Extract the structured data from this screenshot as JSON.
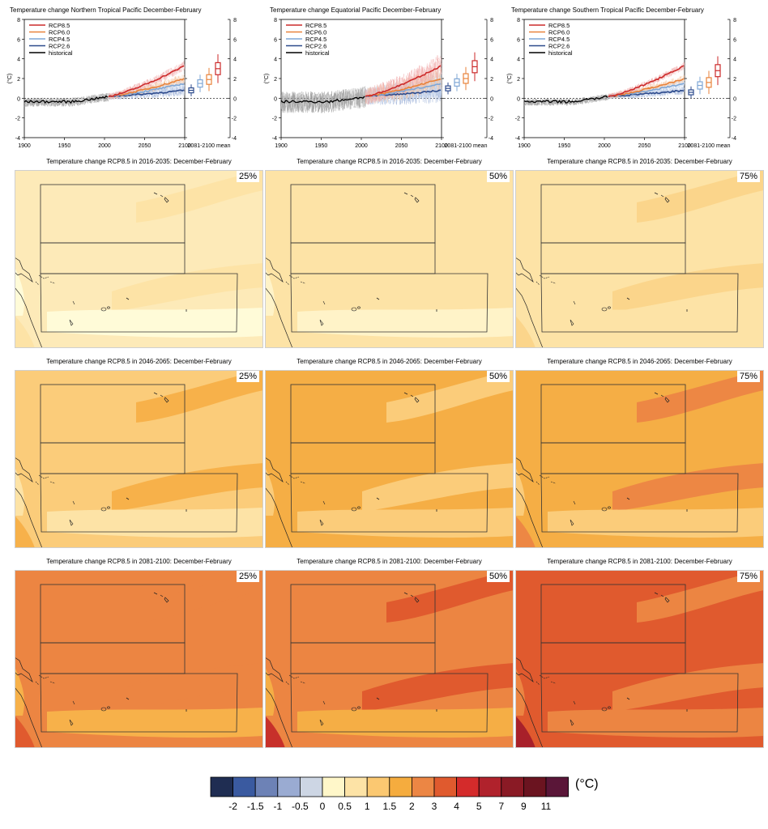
{
  "timeseries": [
    {
      "title": "Temperature change Northern Tropical Pacific December-February",
      "left": 8,
      "box": {
        "RCP2.6": 0.8,
        "RCP4.5": 1.5,
        "RCP6.0": 1.9,
        "RCP8.5": 3.0
      },
      "noise": 0.45
    },
    {
      "title": "Temperature change Equatorial Pacific December-February",
      "left": 325,
      "box": {
        "RCP2.6": 1.0,
        "RCP4.5": 1.6,
        "RCP6.0": 2.0,
        "RCP8.5": 3.2
      },
      "noise": 1.1
    },
    {
      "title": "Temperature change Southern Tropical Pacific December-February",
      "left": 636,
      "box": {
        "RCP2.6": 0.6,
        "RCP4.5": 1.3,
        "RCP6.0": 1.6,
        "RCP8.5": 2.8
      },
      "noise": 0.35
    }
  ],
  "legend": [
    "RCP8.5",
    "RCP6.0",
    "RCP4.5",
    "RCP2.6",
    "historical"
  ],
  "unit_axis": "(°C)",
  "box_label": "2081-2100 mean",
  "colors": {
    "rcp85": "#cc2a2a",
    "rcp60": "#e8823a",
    "rcp45": "#7fa7d6",
    "rcp26": "#2c4a8c",
    "historical": "#000000",
    "rcp85_light": "#f0a7a7",
    "rcp60_light": "#f5c4a0",
    "rcp45_light": "#c5d6ee",
    "rcp26_light": "#9fb2d8",
    "hist_light": "#9a9a9a"
  },
  "chart_data": {
    "type": "line",
    "x_range": [
      1900,
      2100
    ],
    "ylim": [
      -4,
      8
    ],
    "x_ticks": [
      1900,
      1950,
      2000,
      2050,
      2100
    ],
    "y_ticks": [
      -4,
      -2,
      0,
      2,
      4,
      6,
      8
    ]
  },
  "maps": [
    {
      "title": "Temperature change RCP8.5 in 2016-2035: December-February",
      "pct": "25%",
      "base": "#fdeab8",
      "alt": "#fde3a6",
      "alt2": "#fffbd8",
      "alt_c": "#fde3a6"
    },
    {
      "title": "Temperature change RCP8.5 in 2016-2035: December-February",
      "pct": "50%",
      "base": "#fde3a6",
      "alt": "#fde3a6",
      "alt2": "#fff3c8",
      "alt_c": "#fde3a6"
    },
    {
      "title": "Temperature change RCP8.5 in 2016-2035: December-February",
      "pct": "75%",
      "base": "#fde3a6",
      "alt": "#fbd58b",
      "alt2": "#fde3a6",
      "alt_c": "#fbd58b"
    },
    {
      "title": "Temperature change RCP8.5 in 2046-2065: December-February",
      "pct": "25%",
      "base": "#fbcc7a",
      "alt": "#f7b14a",
      "alt2": "#fde3a6",
      "alt_c": "#f7b14a"
    },
    {
      "title": "Temperature change RCP8.5 in 2046-2065: December-February",
      "pct": "50%",
      "base": "#f5ae45",
      "alt": "#fbcc7a",
      "alt2": "#fbcc7a",
      "alt_c": "#f5ae45"
    },
    {
      "title": "Temperature change RCP8.5 in 2046-2065: December-February",
      "pct": "75%",
      "base": "#f5ae45",
      "alt": "#ed8744",
      "alt2": "#fbcc7a",
      "alt_c": "#ed8744"
    },
    {
      "title": "Temperature change RCP8.5 in 2081-2100: December-February",
      "pct": "25%",
      "base": "#ec8542",
      "alt": "#ec8542",
      "alt2": "#f7b14a",
      "alt_c": "#e05a2e"
    },
    {
      "title": "Temperature change RCP8.5 in 2081-2100: December-February",
      "pct": "50%",
      "base": "#ec8542",
      "alt": "#e05a2e",
      "alt2": "#f5ae45",
      "alt_c": "#c7302a"
    },
    {
      "title": "Temperature change RCP8.5 in 2081-2100: December-February",
      "pct": "75%",
      "base": "#e05a2e",
      "alt": "#ec8542",
      "alt2": "#ec8542",
      "alt_c": "#a8202a"
    }
  ],
  "colorbar": {
    "colors": [
      "#1f2d52",
      "#3a5aa0",
      "#6d82b6",
      "#9aabd2",
      "#cdd6e4",
      "#fff7c9",
      "#fde3a6",
      "#fbc871",
      "#f5ac3e",
      "#ec8644",
      "#e05a2e",
      "#d42b2b",
      "#b0222c",
      "#8a1a25",
      "#6b1420",
      "#5a1638"
    ],
    "labels": [
      "-2",
      "-1.5",
      "-1",
      "-0.5",
      "0",
      "0.5",
      "1",
      "1.5",
      "2",
      "3",
      "4",
      "5",
      "7",
      "9",
      "11"
    ],
    "unit": "(°C)"
  }
}
